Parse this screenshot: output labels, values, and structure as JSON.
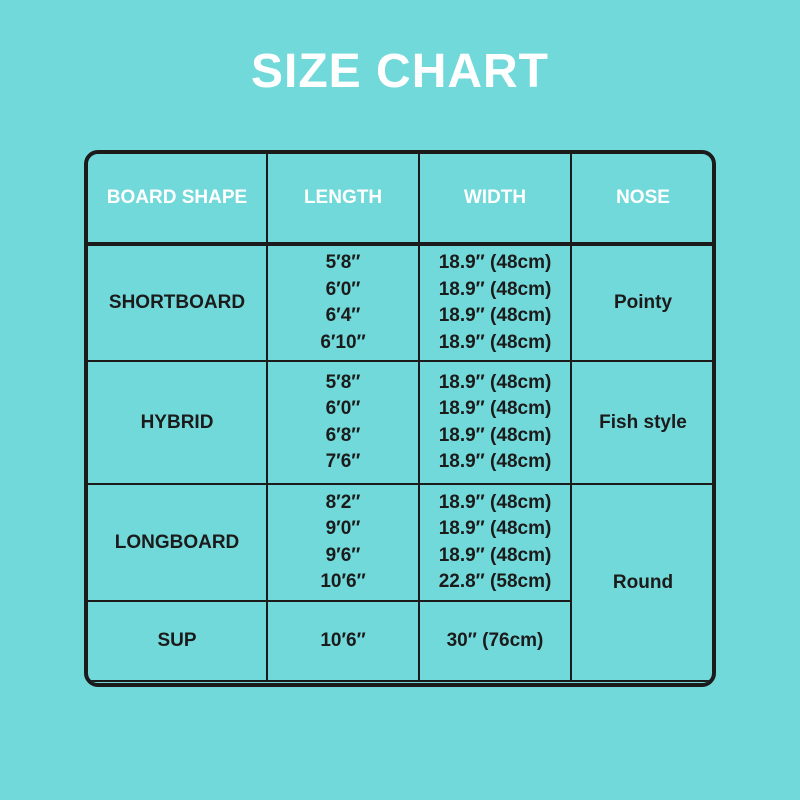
{
  "header": {
    "title": "SIZE CHART"
  },
  "table": {
    "columns": [
      "BOARD SHAPE",
      "LENGTH",
      "WIDTH",
      "NOSE"
    ],
    "rows": [
      {
        "shape": "SHORTBOARD",
        "lengths": [
          "5′8″",
          "6′0″",
          "6′4″",
          "6′10″"
        ],
        "widths": [
          "18.9″ (48cm)",
          "18.9″ (48cm)",
          "18.9″ (48cm)",
          "18.9″ (48cm)"
        ],
        "nose": "Pointy"
      },
      {
        "shape": "HYBRID",
        "lengths": [
          "5′8″",
          "6′0″",
          "6′8″",
          "7′6″"
        ],
        "widths": [
          "18.9″ (48cm)",
          "18.9″ (48cm)",
          "18.9″ (48cm)",
          "18.9″ (48cm)"
        ],
        "nose": "Fish style"
      },
      {
        "shape": "LONGBOARD",
        "lengths": [
          "8′2″",
          "9′0″",
          "9′6″",
          "10′6″"
        ],
        "widths": [
          "18.9″ (48cm)",
          "18.9″ (48cm)",
          "18.9″ (48cm)",
          "22.8″ (58cm)"
        ],
        "nose": "Round"
      },
      {
        "shape": "SUP",
        "lengths": [
          "10′6″"
        ],
        "widths": [
          "30″ (76cm)"
        ]
      }
    ]
  }
}
